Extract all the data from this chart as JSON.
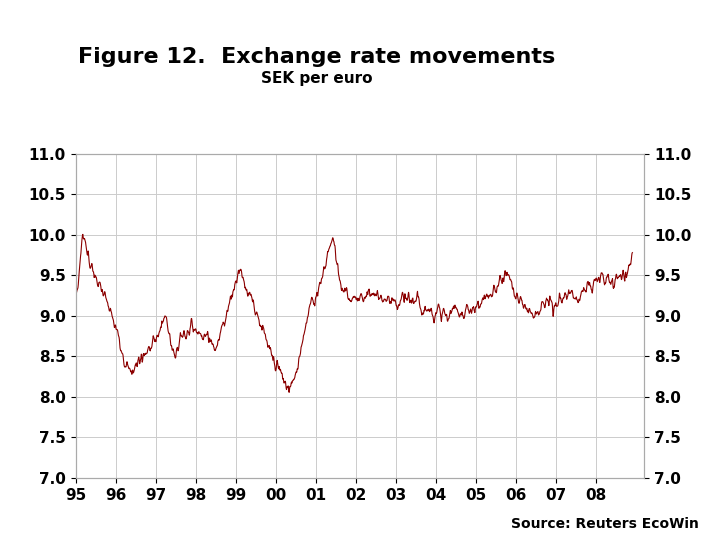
{
  "title": "Figure 12.  Exchange rate movements",
  "subtitle": "SEK per euro",
  "source_text": "Source: Reuters EcoWin",
  "line_color": "#8B0000",
  "line_width": 0.8,
  "ylim": [
    7.0,
    11.0
  ],
  "yticks": [
    7.0,
    7.5,
    8.0,
    8.5,
    9.0,
    9.5,
    10.0,
    10.5,
    11.0
  ],
  "xtick_labels": [
    "95",
    "96",
    "97",
    "98",
    "99",
    "00",
    "01",
    "02",
    "03",
    "04",
    "05",
    "06",
    "07",
    "08"
  ],
  "grid_color": "#cccccc",
  "background_color": "#ffffff",
  "footer_color": "#1a3a7a",
  "title_fontsize": 16,
  "subtitle_fontsize": 11,
  "axis_fontsize": 11,
  "source_fontsize": 10
}
